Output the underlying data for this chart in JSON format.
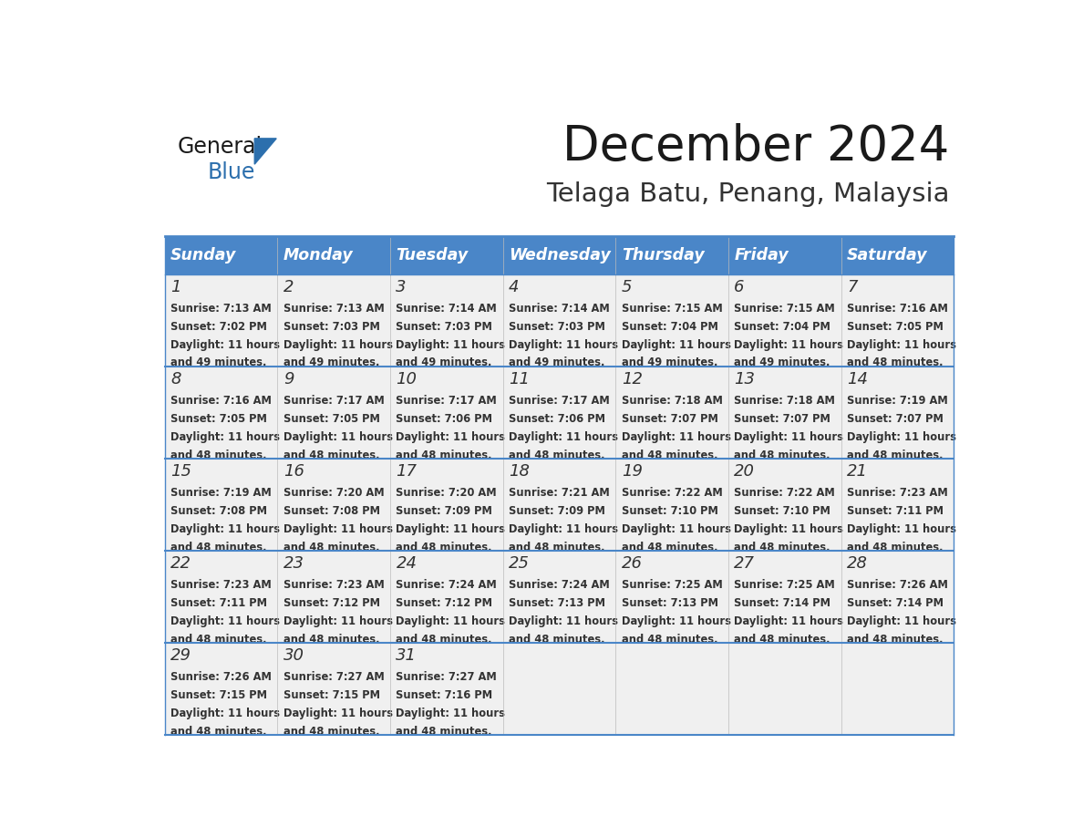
{
  "title": "December 2024",
  "subtitle": "Telaga Batu, Penang, Malaysia",
  "header_color": "#4a86c8",
  "header_text_color": "#ffffff",
  "cell_bg_color": "#f0f0f0",
  "border_color": "#4a86c8",
  "day_names": [
    "Sunday",
    "Monday",
    "Tuesday",
    "Wednesday",
    "Thursday",
    "Friday",
    "Saturday"
  ],
  "days": [
    {
      "day": 1,
      "col": 0,
      "row": 0,
      "sunrise": "7:13 AM",
      "sunset": "7:02 PM",
      "daylight1": "11 hours",
      "daylight2": "and 49 minutes."
    },
    {
      "day": 2,
      "col": 1,
      "row": 0,
      "sunrise": "7:13 AM",
      "sunset": "7:03 PM",
      "daylight1": "11 hours",
      "daylight2": "and 49 minutes."
    },
    {
      "day": 3,
      "col": 2,
      "row": 0,
      "sunrise": "7:14 AM",
      "sunset": "7:03 PM",
      "daylight1": "11 hours",
      "daylight2": "and 49 minutes."
    },
    {
      "day": 4,
      "col": 3,
      "row": 0,
      "sunrise": "7:14 AM",
      "sunset": "7:03 PM",
      "daylight1": "11 hours",
      "daylight2": "and 49 minutes."
    },
    {
      "day": 5,
      "col": 4,
      "row": 0,
      "sunrise": "7:15 AM",
      "sunset": "7:04 PM",
      "daylight1": "11 hours",
      "daylight2": "and 49 minutes."
    },
    {
      "day": 6,
      "col": 5,
      "row": 0,
      "sunrise": "7:15 AM",
      "sunset": "7:04 PM",
      "daylight1": "11 hours",
      "daylight2": "and 49 minutes."
    },
    {
      "day": 7,
      "col": 6,
      "row": 0,
      "sunrise": "7:16 AM",
      "sunset": "7:05 PM",
      "daylight1": "11 hours",
      "daylight2": "and 48 minutes."
    },
    {
      "day": 8,
      "col": 0,
      "row": 1,
      "sunrise": "7:16 AM",
      "sunset": "7:05 PM",
      "daylight1": "11 hours",
      "daylight2": "and 48 minutes."
    },
    {
      "day": 9,
      "col": 1,
      "row": 1,
      "sunrise": "7:17 AM",
      "sunset": "7:05 PM",
      "daylight1": "11 hours",
      "daylight2": "and 48 minutes."
    },
    {
      "day": 10,
      "col": 2,
      "row": 1,
      "sunrise": "7:17 AM",
      "sunset": "7:06 PM",
      "daylight1": "11 hours",
      "daylight2": "and 48 minutes."
    },
    {
      "day": 11,
      "col": 3,
      "row": 1,
      "sunrise": "7:17 AM",
      "sunset": "7:06 PM",
      "daylight1": "11 hours",
      "daylight2": "and 48 minutes."
    },
    {
      "day": 12,
      "col": 4,
      "row": 1,
      "sunrise": "7:18 AM",
      "sunset": "7:07 PM",
      "daylight1": "11 hours",
      "daylight2": "and 48 minutes."
    },
    {
      "day": 13,
      "col": 5,
      "row": 1,
      "sunrise": "7:18 AM",
      "sunset": "7:07 PM",
      "daylight1": "11 hours",
      "daylight2": "and 48 minutes."
    },
    {
      "day": 14,
      "col": 6,
      "row": 1,
      "sunrise": "7:19 AM",
      "sunset": "7:07 PM",
      "daylight1": "11 hours",
      "daylight2": "and 48 minutes."
    },
    {
      "day": 15,
      "col": 0,
      "row": 2,
      "sunrise": "7:19 AM",
      "sunset": "7:08 PM",
      "daylight1": "11 hours",
      "daylight2": "and 48 minutes."
    },
    {
      "day": 16,
      "col": 1,
      "row": 2,
      "sunrise": "7:20 AM",
      "sunset": "7:08 PM",
      "daylight1": "11 hours",
      "daylight2": "and 48 minutes."
    },
    {
      "day": 17,
      "col": 2,
      "row": 2,
      "sunrise": "7:20 AM",
      "sunset": "7:09 PM",
      "daylight1": "11 hours",
      "daylight2": "and 48 minutes."
    },
    {
      "day": 18,
      "col": 3,
      "row": 2,
      "sunrise": "7:21 AM",
      "sunset": "7:09 PM",
      "daylight1": "11 hours",
      "daylight2": "and 48 minutes."
    },
    {
      "day": 19,
      "col": 4,
      "row": 2,
      "sunrise": "7:22 AM",
      "sunset": "7:10 PM",
      "daylight1": "11 hours",
      "daylight2": "and 48 minutes."
    },
    {
      "day": 20,
      "col": 5,
      "row": 2,
      "sunrise": "7:22 AM",
      "sunset": "7:10 PM",
      "daylight1": "11 hours",
      "daylight2": "and 48 minutes."
    },
    {
      "day": 21,
      "col": 6,
      "row": 2,
      "sunrise": "7:23 AM",
      "sunset": "7:11 PM",
      "daylight1": "11 hours",
      "daylight2": "and 48 minutes."
    },
    {
      "day": 22,
      "col": 0,
      "row": 3,
      "sunrise": "7:23 AM",
      "sunset": "7:11 PM",
      "daylight1": "11 hours",
      "daylight2": "and 48 minutes."
    },
    {
      "day": 23,
      "col": 1,
      "row": 3,
      "sunrise": "7:23 AM",
      "sunset": "7:12 PM",
      "daylight1": "11 hours",
      "daylight2": "and 48 minutes."
    },
    {
      "day": 24,
      "col": 2,
      "row": 3,
      "sunrise": "7:24 AM",
      "sunset": "7:12 PM",
      "daylight1": "11 hours",
      "daylight2": "and 48 minutes."
    },
    {
      "day": 25,
      "col": 3,
      "row": 3,
      "sunrise": "7:24 AM",
      "sunset": "7:13 PM",
      "daylight1": "11 hours",
      "daylight2": "and 48 minutes."
    },
    {
      "day": 26,
      "col": 4,
      "row": 3,
      "sunrise": "7:25 AM",
      "sunset": "7:13 PM",
      "daylight1": "11 hours",
      "daylight2": "and 48 minutes."
    },
    {
      "day": 27,
      "col": 5,
      "row": 3,
      "sunrise": "7:25 AM",
      "sunset": "7:14 PM",
      "daylight1": "11 hours",
      "daylight2": "and 48 minutes."
    },
    {
      "day": 28,
      "col": 6,
      "row": 3,
      "sunrise": "7:26 AM",
      "sunset": "7:14 PM",
      "daylight1": "11 hours",
      "daylight2": "and 48 minutes."
    },
    {
      "day": 29,
      "col": 0,
      "row": 4,
      "sunrise": "7:26 AM",
      "sunset": "7:15 PM",
      "daylight1": "11 hours",
      "daylight2": "and 48 minutes."
    },
    {
      "day": 30,
      "col": 1,
      "row": 4,
      "sunrise": "7:27 AM",
      "sunset": "7:15 PM",
      "daylight1": "11 hours",
      "daylight2": "and 48 minutes."
    },
    {
      "day": 31,
      "col": 2,
      "row": 4,
      "sunrise": "7:27 AM",
      "sunset": "7:16 PM",
      "daylight1": "11 hours",
      "daylight2": "and 48 minutes."
    }
  ],
  "background_color": "#ffffff"
}
